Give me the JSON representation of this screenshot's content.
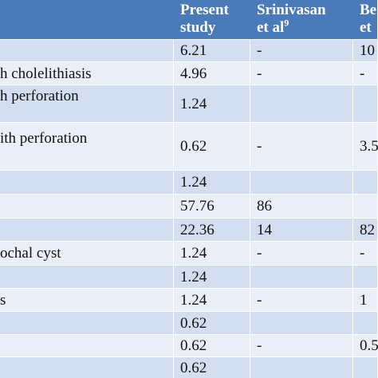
{
  "table": {
    "header": [
      null,
      [
        "Present",
        "study"
      ],
      [
        "Srinivasan",
        {
          "text": "et al",
          "sup": "9"
        }
      ],
      [
        "Be",
        "et"
      ]
    ],
    "rows": [
      [
        null,
        "6.21",
        "-",
        "10"
      ],
      [
        "h cholelithiasis",
        "4.96",
        "-",
        "-"
      ],
      [
        "h perforation",
        "1.24",
        null,
        null
      ],
      [
        "ith perforation",
        "0.62",
        "-",
        "3.5"
      ],
      [
        null,
        "1.24",
        null,
        null
      ],
      [
        null,
        "57.76",
        "86",
        null
      ],
      [
        null,
        "22.36",
        "14",
        "82"
      ],
      [
        "ochal cyst",
        "1.24",
        "-",
        "-"
      ],
      [
        null,
        "1.24",
        null,
        null
      ],
      [
        "s",
        "1.24",
        "-",
        "1"
      ],
      [
        null,
        "0.62",
        null,
        null
      ],
      [
        null,
        "0.62",
        "-",
        "0.5"
      ],
      [
        null,
        "0.62",
        null,
        null
      ]
    ]
  }
}
